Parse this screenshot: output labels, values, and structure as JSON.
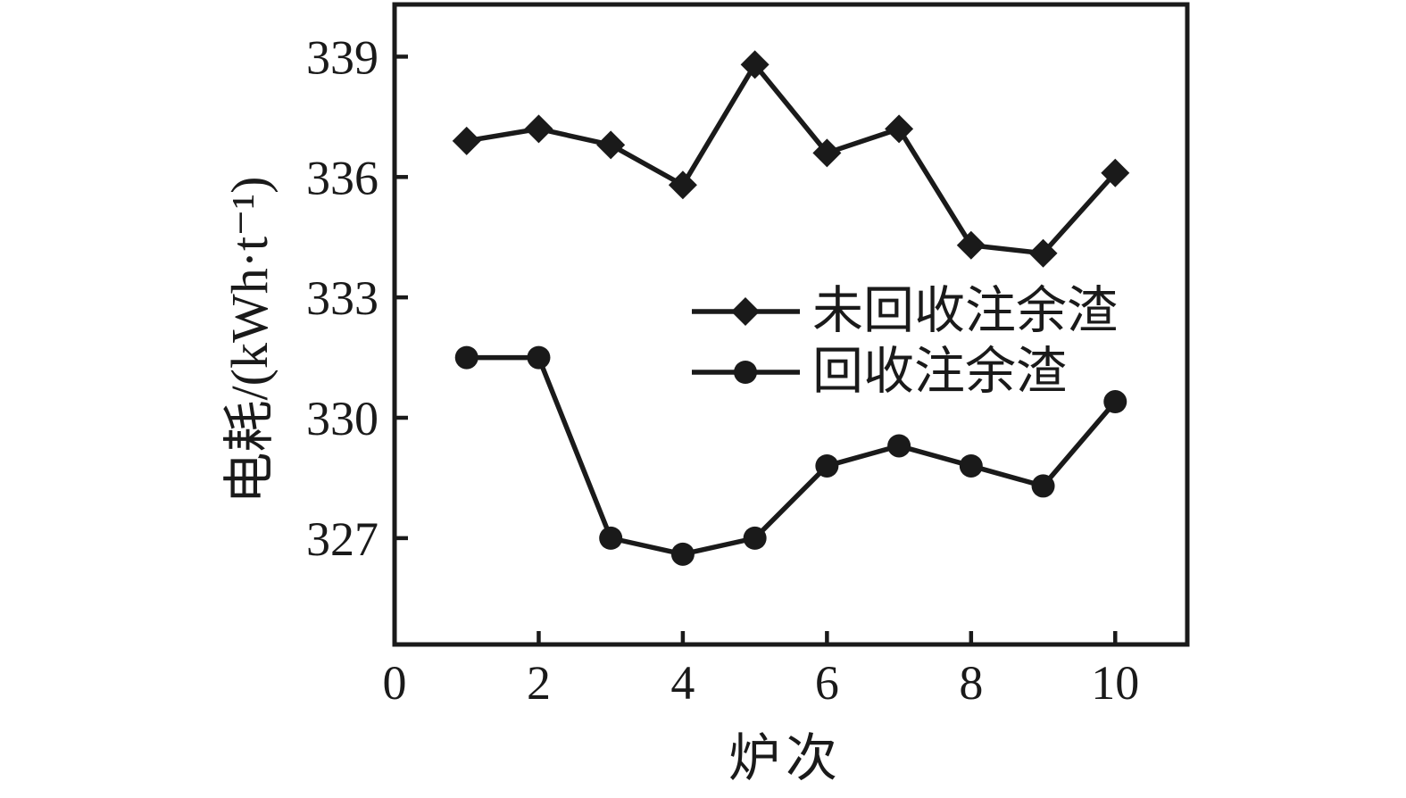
{
  "figure": {
    "background": "#ffffff",
    "ink_color": "#1a1a1a"
  },
  "chart_data": {
    "type": "line",
    "x": [
      1,
      2,
      3,
      4,
      5,
      6,
      7,
      8,
      9,
      10
    ],
    "series": [
      {
        "name": "未回收注余渣",
        "marker": "diamond",
        "color": "#1a1a1a",
        "values": [
          336.9,
          337.2,
          336.8,
          335.8,
          338.8,
          336.6,
          337.2,
          334.3,
          334.1,
          336.1
        ]
      },
      {
        "name": "回收注余渣",
        "marker": "circle",
        "color": "#1a1a1a",
        "values": [
          331.5,
          331.5,
          327.0,
          326.6,
          327.0,
          328.8,
          329.3,
          328.8,
          328.3,
          330.4
        ]
      }
    ],
    "title": "",
    "xlabel": "炉次",
    "ylabel": "电耗/(kWh·t⁻¹)",
    "x_ticks": [
      0,
      2,
      4,
      6,
      8,
      10
    ],
    "y_ticks": [
      327,
      330,
      333,
      336,
      339
    ],
    "xlim": [
      0,
      11
    ],
    "ylim": [
      324.35,
      340.3
    ],
    "grid": false,
    "legend_position": "inside-center-right"
  }
}
